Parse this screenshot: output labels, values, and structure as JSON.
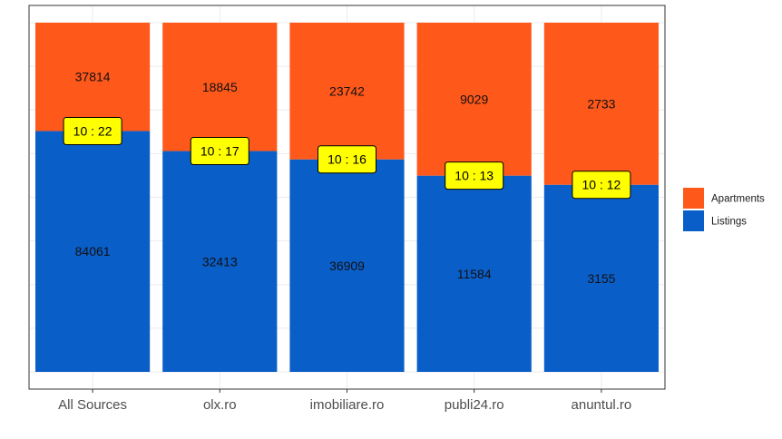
{
  "chart_data": {
    "type": "bar",
    "stacked": "proportional",
    "categories": [
      "All Sources",
      "olx.ro",
      "imobiliare.ro",
      "publi24.ro",
      "anuntul.ro"
    ],
    "series": [
      {
        "name": "Listings",
        "color": "#0a5ec8",
        "values": [
          84061,
          32413,
          36909,
          11584,
          3155
        ]
      },
      {
        "name": "Apartments",
        "color": "#fe581a",
        "values": [
          37814,
          18845,
          23742,
          9029,
          2733
        ]
      }
    ],
    "ratio_labels": [
      "10 : 22",
      "10 : 17",
      "10 : 16",
      "10 : 13",
      "10 : 12"
    ],
    "ratio_label_color": "#ffff00",
    "legend": {
      "position": "right",
      "entries": [
        "Apartments",
        "Listings"
      ]
    },
    "grid": true,
    "y_ticks_shown": false,
    "title": "",
    "xlabel": "",
    "ylabel": ""
  }
}
